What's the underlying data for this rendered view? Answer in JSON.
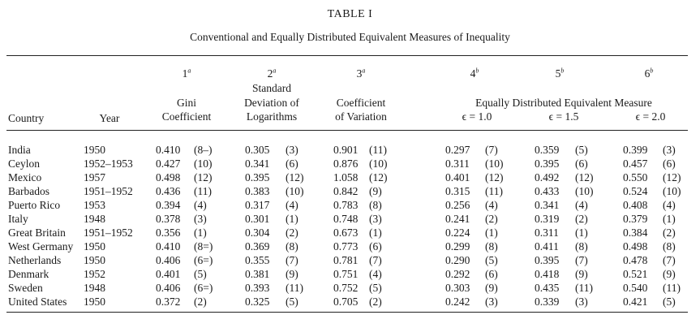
{
  "title": "TABLE I",
  "subtitle": "Conventional and Equally Distributed Equivalent Measures of Inequality",
  "headers": {
    "numbers": [
      "1",
      "2",
      "3",
      "4",
      "5",
      "6"
    ],
    "marks": [
      "a",
      "a",
      "a",
      "b",
      "b",
      "b"
    ],
    "country": "Country",
    "year": "Year",
    "col1_line1": "Gini",
    "col1_line2": "Coefficient",
    "col2_line1": "Standard",
    "col2_line2": "Deviation of",
    "col2_line3": "Logarithms",
    "col3_line1": "Coefficient",
    "col3_line2": "of Variation",
    "equal_group": "Equally Distributed Equivalent Measure",
    "eps1": "ϵ = 1.0",
    "eps2": "ϵ = 1.5",
    "eps3": "ϵ = 2.0"
  },
  "rows": [
    {
      "country": "India",
      "year": "1950",
      "c1": "0.410",
      "r1": "(8–)",
      "c2": "0.305",
      "r2": "(3)",
      "c3": "0.901",
      "r3": "(11)",
      "c4": "0.297",
      "r4": "(7)",
      "c5": "0.359",
      "r5": "(5)",
      "c6": "0.399",
      "r6": "(3)"
    },
    {
      "country": "Ceylon",
      "year": "1952–1953",
      "c1": "0.427",
      "r1": "(10)",
      "c2": "0.341",
      "r2": "(6)",
      "c3": "0.876",
      "r3": "(10)",
      "c4": "0.311",
      "r4": "(10)",
      "c5": "0.395",
      "r5": "(6)",
      "c6": "0.457",
      "r6": "(6)"
    },
    {
      "country": "Mexico",
      "year": "1957",
      "c1": "0.498",
      "r1": "(12)",
      "c2": "0.395",
      "r2": "(12)",
      "c3": "1.058",
      "r3": "(12)",
      "c4": "0.401",
      "r4": "(12)",
      "c5": "0.492",
      "r5": "(12)",
      "c6": "0.550",
      "r6": "(12)"
    },
    {
      "country": "Barbados",
      "year": "1951–1952",
      "c1": "0.436",
      "r1": "(11)",
      "c2": "0.383",
      "r2": "(10)",
      "c3": "0.842",
      "r3": "(9)",
      "c4": "0.315",
      "r4": "(11)",
      "c5": "0.433",
      "r5": "(10)",
      "c6": "0.524",
      "r6": "(10)"
    },
    {
      "country": "Puerto Rico",
      "year": "1953",
      "c1": "0.394",
      "r1": "(4)",
      "c2": "0.317",
      "r2": "(4)",
      "c3": "0.783",
      "r3": "(8)",
      "c4": "0.256",
      "r4": "(4)",
      "c5": "0.341",
      "r5": "(4)",
      "c6": "0.408",
      "r6": "(4)"
    },
    {
      "country": "Italy",
      "year": "1948",
      "c1": "0.378",
      "r1": "(3)",
      "c2": "0.301",
      "r2": "(1)",
      "c3": "0.748",
      "r3": "(3)",
      "c4": "0.241",
      "r4": "(2)",
      "c5": "0.319",
      "r5": "(2)",
      "c6": "0.379",
      "r6": "(1)"
    },
    {
      "country": "Great Britain",
      "year": "1951–1952",
      "c1": "0.356",
      "r1": "(1)",
      "c2": "0.304",
      "r2": "(2)",
      "c3": "0.673",
      "r3": "(1)",
      "c4": "0.224",
      "r4": "(1)",
      "c5": "0.311",
      "r5": "(1)",
      "c6": "0.384",
      "r6": "(2)"
    },
    {
      "country": "West Germany",
      "year": "1950",
      "c1": "0.410",
      "r1": "(8=)",
      "c2": "0.369",
      "r2": "(8)",
      "c3": "0.773",
      "r3": "(6)",
      "c4": "0.299",
      "r4": "(8)",
      "c5": "0.411",
      "r5": "(8)",
      "c6": "0.498",
      "r6": "(8)"
    },
    {
      "country": "Netherlands",
      "year": "1950",
      "c1": "0.406",
      "r1": "(6=)",
      "c2": "0.355",
      "r2": "(7)",
      "c3": "0.781",
      "r3": "(7)",
      "c4": "0.290",
      "r4": "(5)",
      "c5": "0.395",
      "r5": "(7)",
      "c6": "0.478",
      "r6": "(7)"
    },
    {
      "country": "Denmark",
      "year": "1952",
      "c1": "0.401",
      "r1": "(5)",
      "c2": "0.381",
      "r2": "(9)",
      "c3": "0.751",
      "r3": "(4)",
      "c4": "0.292",
      "r4": "(6)",
      "c5": "0.418",
      "r5": "(9)",
      "c6": "0.521",
      "r6": "(9)"
    },
    {
      "country": "Sweden",
      "year": "1948",
      "c1": "0.406",
      "r1": "(6=)",
      "c2": "0.393",
      "r2": "(11)",
      "c3": "0.752",
      "r3": "(5)",
      "c4": "0.303",
      "r4": "(9)",
      "c5": "0.435",
      "r5": "(11)",
      "c6": "0.540",
      "r6": "(11)"
    },
    {
      "country": "United States",
      "year": "1950",
      "c1": "0.372",
      "r1": "(2)",
      "c2": "0.325",
      "r2": "(5)",
      "c3": "0.705",
      "r3": "(2)",
      "c4": "0.242",
      "r4": "(3)",
      "c5": "0.339",
      "r5": "(3)",
      "c6": "0.421",
      "r6": "(5)"
    }
  ]
}
